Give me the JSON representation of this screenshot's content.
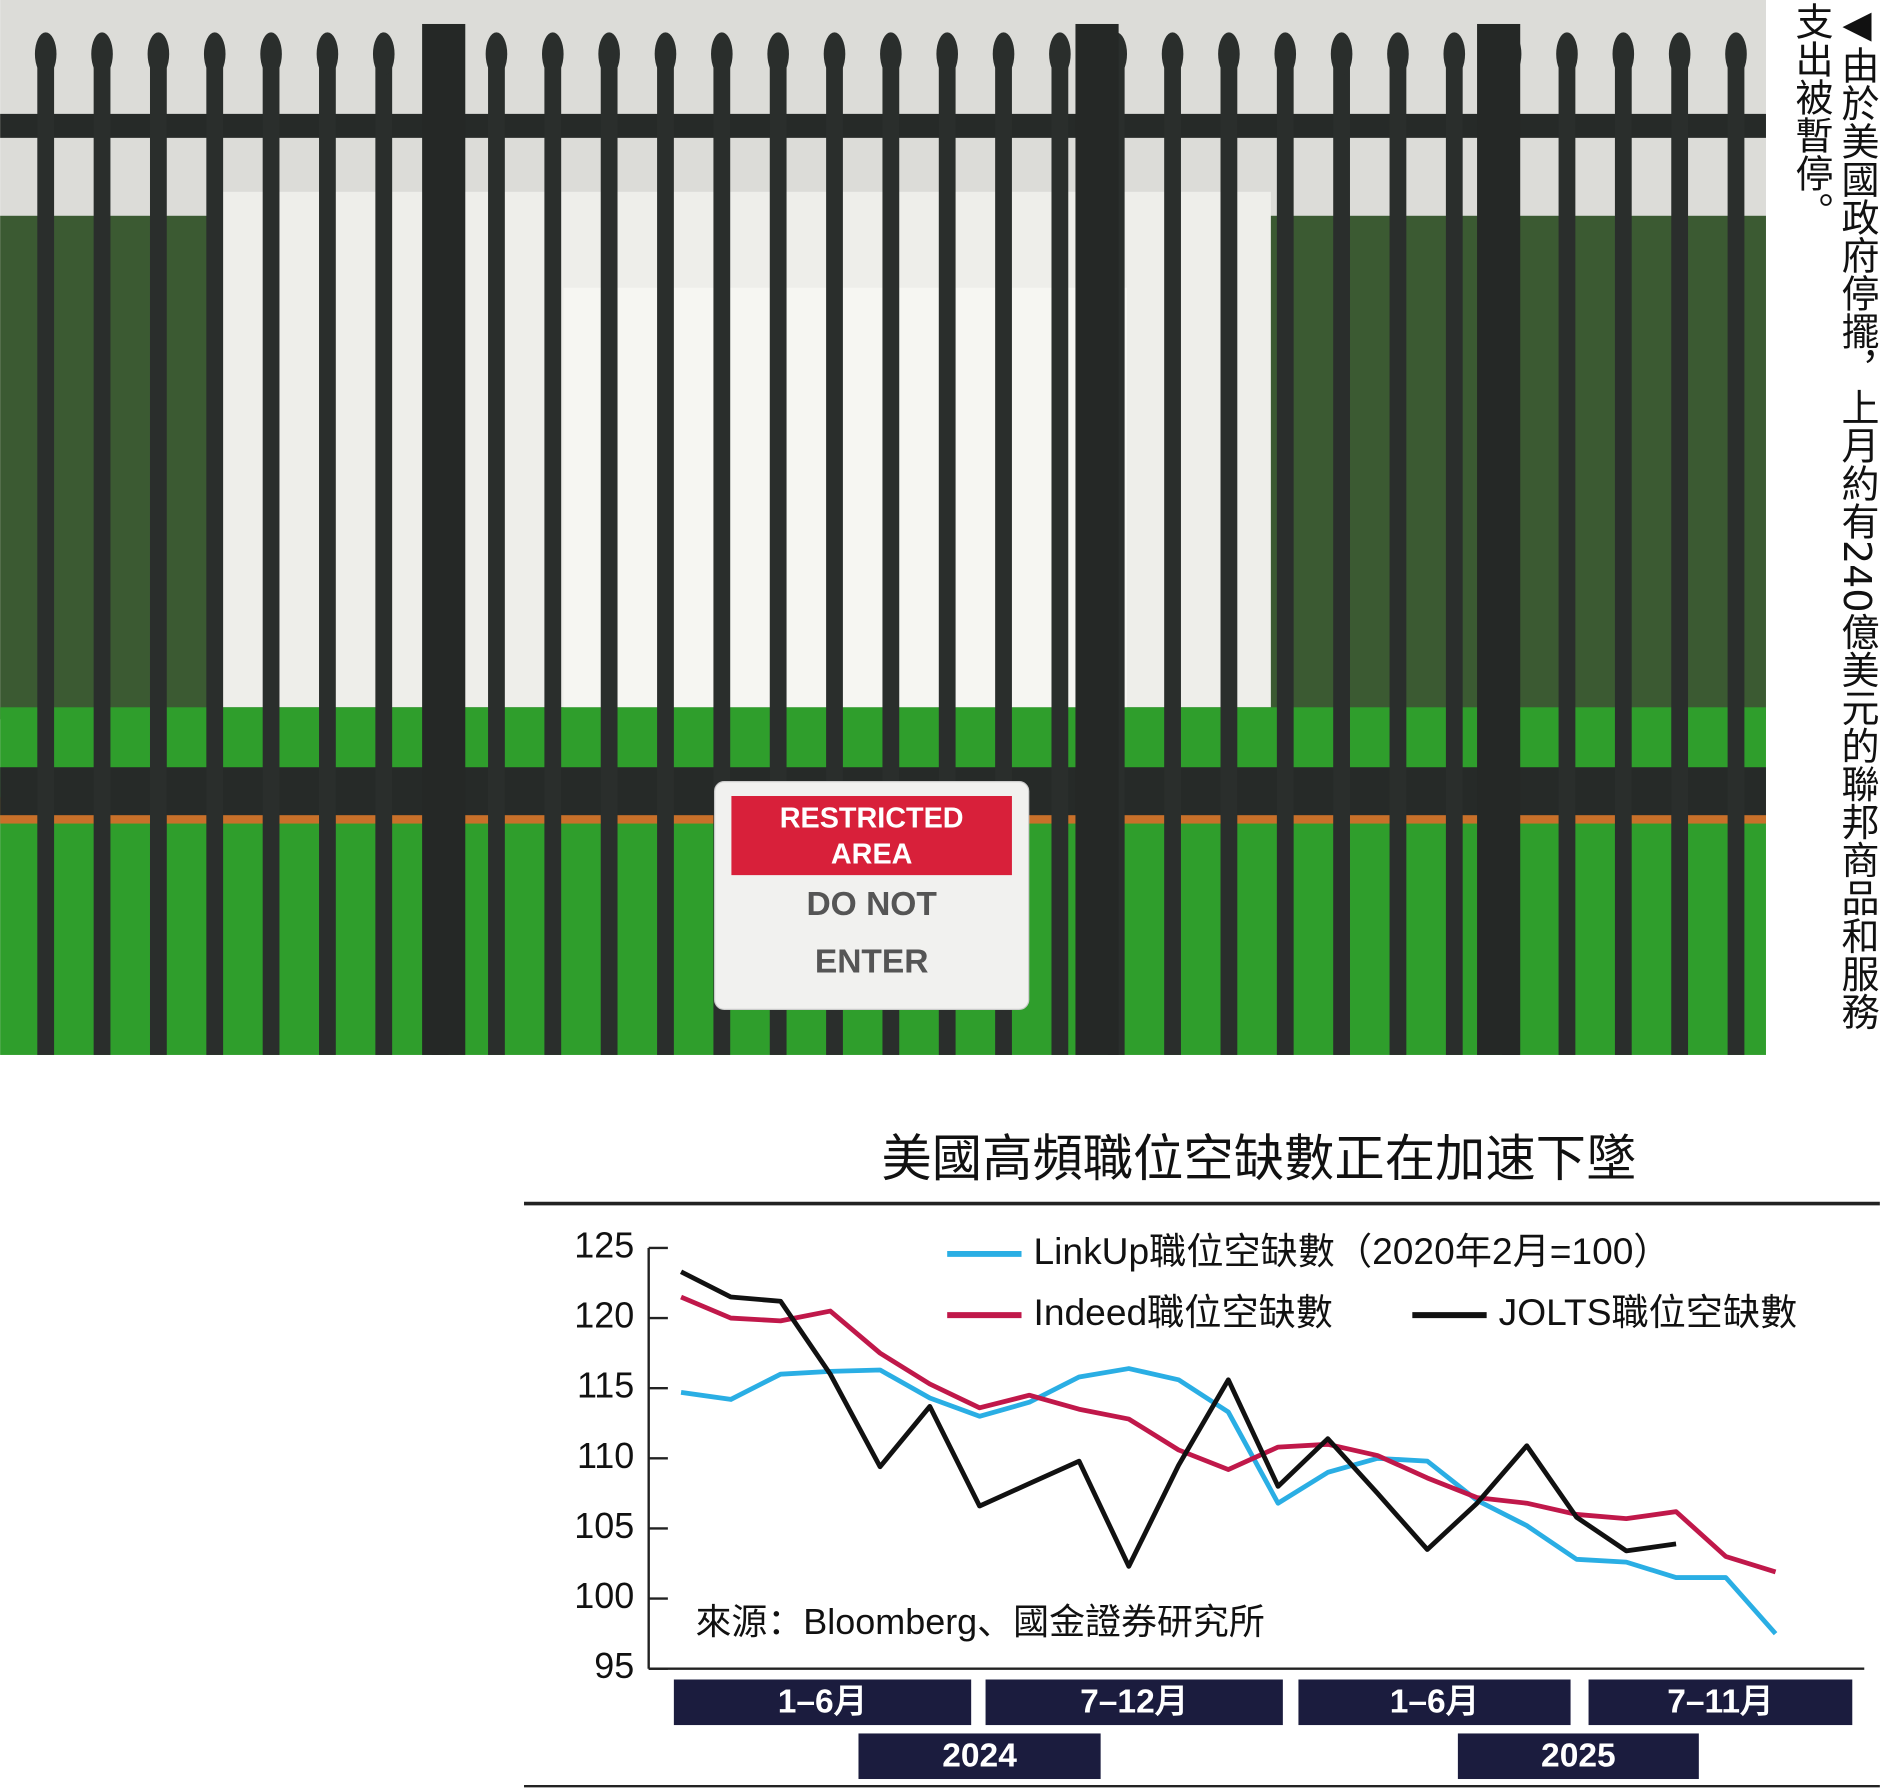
{
  "caption": "◀由於美國政府停擺，上月約有240億美元的聯邦商品和服務支出被暫停。",
  "photo": {
    "sign": [
      "RESTRICTED",
      "AREA",
      "DO NOT",
      "ENTER"
    ]
  },
  "chart_data": {
    "type": "line",
    "title": "美國高頻職位空缺數正在加速下墜",
    "source": "來源：Bloomberg、國金證券研究所",
    "periods": [
      "1–6月",
      "7–12月",
      "1–6月",
      "7–11月"
    ],
    "years": [
      "2024",
      "2025"
    ],
    "ylim": [
      95,
      125
    ],
    "yticks": [
      95,
      100,
      105,
      110,
      115,
      120,
      125
    ],
    "grid": false,
    "series": [
      {
        "name": "LinkUp職位空缺數（2020年2月=100）",
        "color": "#2aaee4",
        "values": [
          114.7,
          114.2,
          116.0,
          116.2,
          116.3,
          114.3,
          113.0,
          114.0,
          115.8,
          116.4,
          115.6,
          113.3,
          106.8,
          109.0,
          110.0,
          109.8,
          107.0,
          105.2,
          102.8,
          102.6,
          101.5,
          101.5,
          97.5
        ]
      },
      {
        "name": "Indeed職位空缺數",
        "color": "#c0184a",
        "values": [
          121.5,
          120.0,
          119.8,
          120.5,
          117.5,
          115.3,
          113.6,
          114.5,
          113.5,
          112.8,
          110.6,
          109.2,
          110.8,
          111.0,
          110.2,
          108.6,
          107.2,
          106.8,
          106.0,
          105.7,
          106.2,
          103.0,
          101.9
        ]
      },
      {
        "name": "JOLTS職位空缺數",
        "color": "#111111",
        "values": [
          123.3,
          121.5,
          121.2,
          116.0,
          109.4,
          113.7,
          106.6,
          108.2,
          109.8,
          102.3,
          109.5,
          115.6,
          108.0,
          111.4,
          107.5,
          103.5,
          106.8,
          110.9,
          105.8,
          103.4,
          103.9,
          null,
          null
        ]
      }
    ]
  }
}
